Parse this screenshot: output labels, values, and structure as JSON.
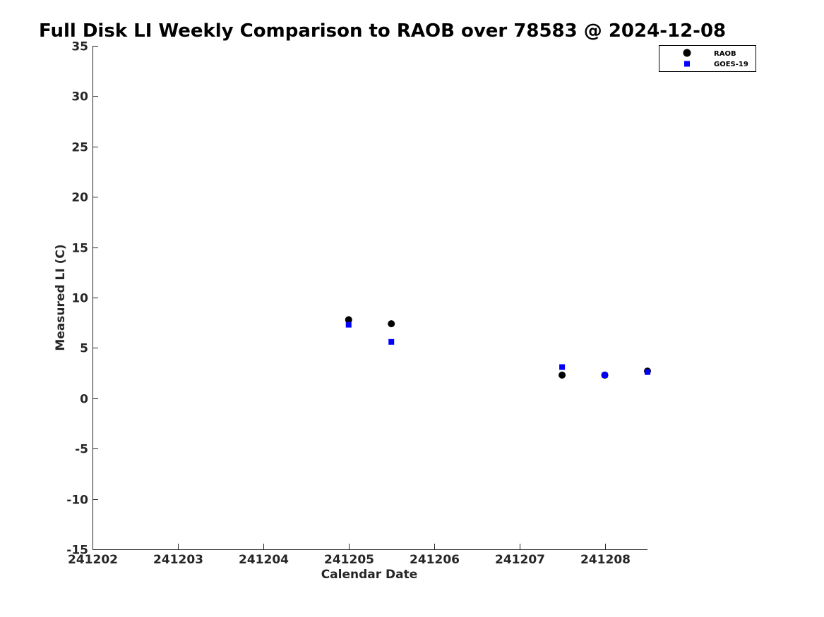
{
  "chart_data": {
    "type": "scatter",
    "title": "Full Disk LI Weekly Comparison to RAOB over 78583 @ 2024-12-08",
    "xlabel": "Calendar Date",
    "ylabel": "Measured LI (C)",
    "xlim": [
      "2024-12-02",
      "2024-12-08 12:00"
    ],
    "ylim": [
      -15,
      35
    ],
    "x_ticks": [
      "241202",
      "241203",
      "241204",
      "241205",
      "241206",
      "241207",
      "241208"
    ],
    "y_ticks": [
      "35",
      "30",
      "25",
      "20",
      "15",
      "10",
      "5",
      "0",
      "-5",
      "-10",
      "-15"
    ],
    "grid": false,
    "legend_position": "top-right",
    "series": [
      {
        "name": "RAOB",
        "marker": "circle",
        "color": "#000000",
        "x": [
          "2024-12-05 00:00",
          "2024-12-05 12:00",
          "2024-12-07 12:00",
          "2024-12-08 00:00",
          "2024-12-08 12:00"
        ],
        "y": [
          7.8,
          7.4,
          2.3,
          2.3,
          2.7
        ]
      },
      {
        "name": "GOES-19",
        "marker": "square",
        "color": "#0000ff",
        "x": [
          "2024-12-05 00:00",
          "2024-12-05 12:00",
          "2024-12-07 12:00",
          "2024-12-08 00:00",
          "2024-12-08 12:00"
        ],
        "y": [
          7.3,
          5.6,
          3.1,
          2.3,
          2.6
        ]
      }
    ]
  }
}
